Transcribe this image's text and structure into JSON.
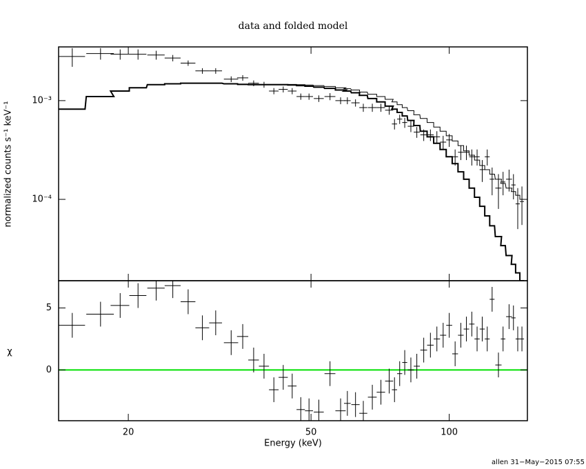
{
  "chart_data": [
    {
      "type": "errorbar",
      "title": "data and folded model",
      "ylabel": "normalized counts s⁻¹ keV⁻¹",
      "xscale": "log",
      "yscale": "log",
      "xlim": [
        14.1,
        148
      ],
      "ylim": [
        1.5e-05,
        0.0035
      ],
      "xticks": [
        20,
        50,
        100
      ],
      "xtick_labels": false,
      "yticks": [
        {
          "value": 0.001,
          "label": "10⁻³"
        },
        {
          "value": 0.0001,
          "label": "10⁻⁴"
        }
      ],
      "color": "#000000",
      "x": [
        15.1,
        17.4,
        19.2,
        21,
        23,
        25,
        27,
        29,
        31,
        33.5,
        35.5,
        37.5,
        39.5,
        41.5,
        43.5,
        45.5,
        47.5,
        49.5,
        52,
        55,
        58,
        60,
        62.5,
        65,
        68,
        71,
        74,
        76,
        78,
        80,
        82.5,
        85,
        88,
        91,
        94,
        97,
        100,
        103,
        106,
        109,
        112,
        115,
        118,
        121,
        124,
        128,
        131,
        135,
        138,
        141,
        144
      ],
      "x_err": [
        1,
        1.2,
        0.9,
        0.9,
        1,
        1,
        1,
        1,
        1,
        1.2,
        1,
        1,
        1,
        1,
        1,
        1,
        1,
        1,
        1.3,
        1.5,
        1.5,
        1,
        1.3,
        1.3,
        1.5,
        1.5,
        1.5,
        1,
        1,
        1,
        1.3,
        1.3,
        1.5,
        1.5,
        1.5,
        1.5,
        1.5,
        1.5,
        1.5,
        1.5,
        1.5,
        1.5,
        1.5,
        1.5,
        1.5,
        2,
        1.5,
        2,
        1.5,
        1.5,
        1.5
      ],
      "values": [
        0.0028,
        0.003,
        0.00295,
        0.00295,
        0.0029,
        0.0027,
        0.0024,
        0.002,
        0.002,
        0.00165,
        0.0017,
        0.0015,
        0.00145,
        0.00125,
        0.0013,
        0.00125,
        0.0011,
        0.0011,
        0.00105,
        0.0011,
        0.001,
        0.001,
        0.00095,
        0.00085,
        0.00085,
        0.00085,
        0.0008,
        0.00058,
        0.00065,
        0.0006,
        0.00055,
        0.00048,
        0.00045,
        0.00045,
        0.00043,
        0.00038,
        0.0004,
        0.00027,
        0.0003,
        0.0003,
        0.00027,
        0.00027,
        0.0002,
        0.00027,
        0.00016,
        0.00013,
        0.00015,
        0.00016,
        0.00014,
        9e-05,
        9.5e-05
      ],
      "errors": [
        0.0006,
        0.0004,
        0.00035,
        0.00035,
        0.0003,
        0.0002,
        0.00015,
        0.00013,
        0.00013,
        0.00011,
        0.00011,
        0.0001,
        0.0001,
        9e-05,
        9e-05,
        9e-05,
        8e-05,
        8e-05,
        8e-05,
        9e-05,
        8e-05,
        8e-05,
        8e-05,
        8e-05,
        8e-05,
        8e-05,
        8e-05,
        7e-05,
        7e-05,
        7e-05,
        7e-05,
        6e-05,
        6e-05,
        6e-05,
        6e-05,
        6e-05,
        6e-05,
        5e-05,
        5e-05,
        5e-05,
        5e-05,
        5e-05,
        5e-05,
        5e-05,
        5e-05,
        5e-05,
        4e-05,
        4e-05,
        4e-05,
        4e-05,
        4e-05
      ],
      "models": [
        {
          "color": "#000000",
          "line_width": 2,
          "values": [
            0.00082,
            0.0011,
            0.00125,
            0.00135,
            0.00145,
            0.00148,
            0.0015,
            0.0015,
            0.0015,
            0.00148,
            0.00146,
            0.00145,
            0.00145,
            0.00145,
            0.00145,
            0.00144,
            0.00142,
            0.0014,
            0.00137,
            0.00133,
            0.00128,
            0.00125,
            0.0012,
            0.00113,
            0.00105,
            0.00097,
            0.00088,
            0.00082,
            0.00076,
            0.0007,
            0.00063,
            0.00056,
            0.00049,
            0.00043,
            0.00037,
            0.00032,
            0.00027,
            0.00023,
            0.00019,
            0.00016,
            0.00013,
            0.000105,
            8.5e-05,
            6.8e-05,
            5.4e-05,
            4.2e-05,
            3.4e-05,
            2.7e-05,
            2.2e-05,
            1.8e-05,
            1.5e-05
          ]
        },
        {
          "color": "#000000",
          "line_width": 1,
          "values": [
            0.00082,
            0.0011,
            0.00125,
            0.00135,
            0.00145,
            0.00148,
            0.0015,
            0.0015,
            0.0015,
            0.00149,
            0.00147,
            0.00146,
            0.00146,
            0.00146,
            0.00146,
            0.00146,
            0.00145,
            0.00144,
            0.00142,
            0.00139,
            0.00135,
            0.00132,
            0.00128,
            0.00122,
            0.00116,
            0.0011,
            0.00103,
            0.00097,
            0.00091,
            0.00085,
            0.00079,
            0.00072,
            0.00066,
            0.0006,
            0.00054,
            0.00049,
            0.00044,
            0.00039,
            0.00035,
            0.00031,
            0.00028,
            0.00025,
            0.00022,
            0.0002,
            0.00018,
            0.00016,
            0.000145,
            0.00013,
            0.00012,
            0.00011,
            0.0001
          ]
        }
      ]
    },
    {
      "type": "errorbar",
      "xlabel": "Energy (keV)",
      "ylabel": "χ",
      "xscale": "log",
      "yscale": "linear",
      "xlim": [
        14.1,
        148
      ],
      "ylim": [
        -4.1,
        7.2
      ],
      "xticks": [
        20,
        50,
        100
      ],
      "xtick_labels": true,
      "yticks": [
        0,
        5
      ],
      "color": "#000000",
      "zero_line_color": "#00e000",
      "x": [
        15.1,
        17.4,
        19.2,
        21,
        23,
        25,
        27,
        29,
        31,
        33.5,
        35.5,
        37.5,
        39.5,
        41.5,
        43.5,
        45.5,
        47.5,
        49.5,
        52,
        55,
        58,
        60,
        62.5,
        65,
        68,
        71,
        74,
        76,
        78,
        80,
        82.5,
        85,
        88,
        91,
        94,
        97,
        100,
        103,
        106,
        109,
        112,
        115,
        118,
        121,
        124,
        128,
        131,
        135,
        138,
        141,
        144
      ],
      "x_err": [
        1,
        1.2,
        0.9,
        0.9,
        1,
        1,
        1,
        1,
        1,
        1.2,
        1,
        1,
        1,
        1,
        1,
        1,
        1,
        1,
        1.3,
        1.5,
        1.5,
        1,
        1.3,
        1.3,
        1.5,
        1.5,
        1.5,
        1,
        1,
        1,
        1.3,
        1.3,
        1.5,
        1.5,
        1.5,
        1.5,
        1.5,
        1.5,
        1.5,
        1.5,
        1.5,
        1.5,
        1.5,
        1.5,
        1.5,
        2,
        1.5,
        2,
        1.5,
        1.5,
        1.5
      ],
      "values": [
        3.6,
        4.5,
        5.2,
        6.0,
        6.6,
        6.8,
        5.5,
        3.4,
        3.8,
        2.2,
        2.7,
        0.8,
        0.3,
        -1.6,
        -0.6,
        -1.3,
        -3.2,
        -3.3,
        -3.4,
        -0.3,
        -3.3,
        -2.7,
        -2.8,
        -3.5,
        -2.2,
        -1.8,
        -0.9,
        -1.6,
        -0.3,
        0.6,
        0.0,
        0.3,
        1.6,
        2.0,
        2.5,
        2.8,
        3.6,
        1.3,
        2.8,
        3.3,
        3.7,
        2.5,
        3.3,
        2.5,
        5.7,
        0.4,
        2.5,
        4.3,
        4.2,
        2.5,
        2.5
      ],
      "errors": [
        1,
        1,
        1,
        1,
        1,
        1,
        1,
        1,
        1,
        1,
        1,
        1,
        1,
        1,
        1,
        1,
        1,
        1,
        1,
        1,
        1,
        1,
        1,
        1,
        1,
        1,
        1,
        1,
        1,
        1,
        1,
        1,
        1,
        1,
        1,
        1,
        1,
        1,
        1,
        1,
        1,
        1,
        1,
        1,
        1,
        1,
        1,
        1,
        1,
        1,
        1
      ]
    }
  ],
  "footer": "allen 31−May−2015 07:55"
}
